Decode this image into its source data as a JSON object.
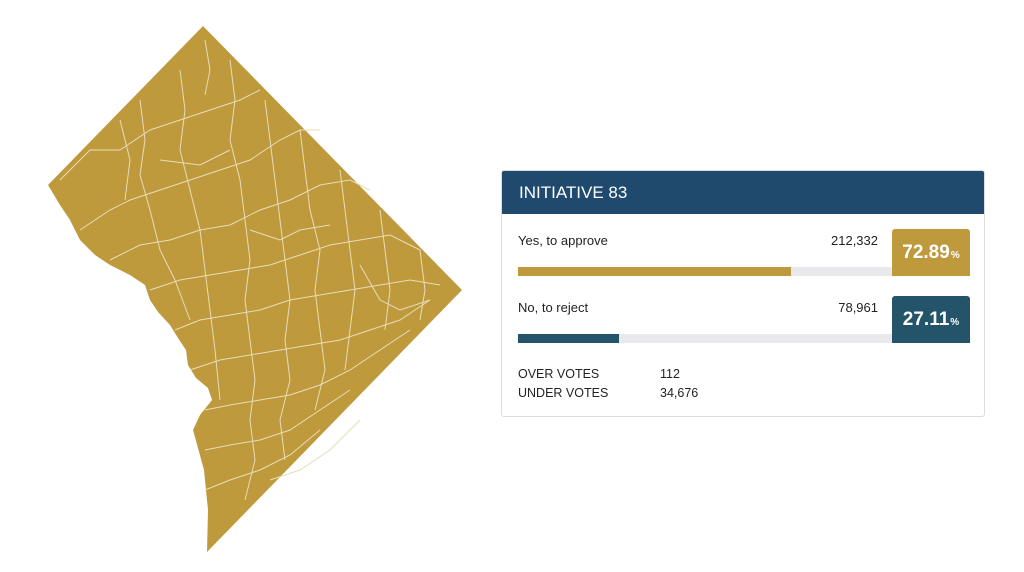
{
  "map": {
    "fill_color": "#bf9a3d",
    "border_color": "#e8dcb8"
  },
  "results": {
    "title": "INITIATIVE 83",
    "header_color": "#1f4a6e",
    "options": [
      {
        "label": "Yes, to approve",
        "votes": "212,332",
        "percent": "72.89",
        "percent_symbol": "%",
        "share": 0.7289,
        "color": "#bf9a3d"
      },
      {
        "label": "No, to reject",
        "votes": "78,961",
        "percent": "27.11",
        "percent_symbol": "%",
        "share": 0.2711,
        "color": "#235469"
      }
    ],
    "stats": [
      {
        "label": "OVER VOTES",
        "value": "112"
      },
      {
        "label": "UNDER VOTES",
        "value": "34,676"
      }
    ]
  }
}
